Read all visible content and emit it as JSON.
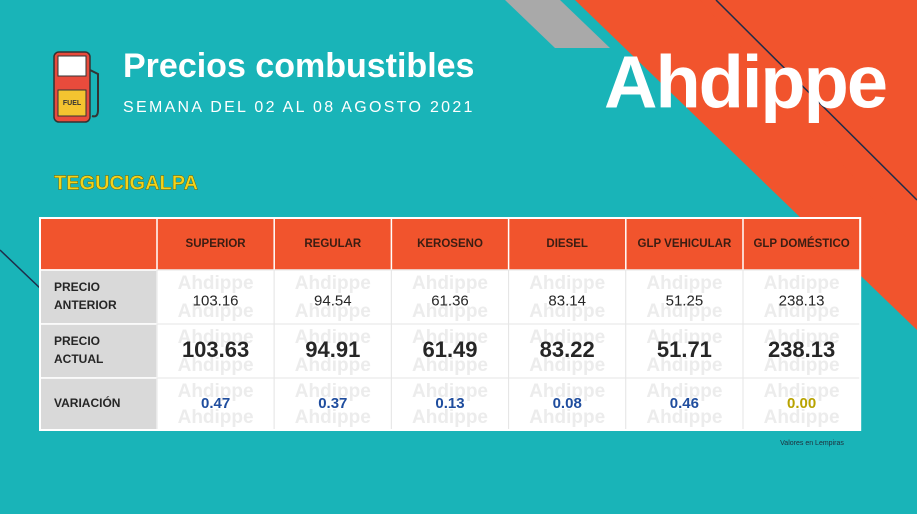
{
  "header": {
    "title": "Precios combustibles",
    "subtitle": "SEMANA DEL 02 AL 08 AGOSTO 2021",
    "icon_label": "FUEL"
  },
  "logo": "Ahdippe",
  "city": "TEGUCIGALPA",
  "table": {
    "columns": [
      "SUPERIOR",
      "REGULAR",
      "KEROSENO",
      "DIESEL",
      "GLP VEHICULAR",
      "GLP DOMÉSTICO"
    ],
    "rows": [
      {
        "label": "PRECIO ANTERIOR",
        "values": [
          "103.16",
          "94.54",
          "61.36",
          "83.14",
          "51.25",
          "238.13"
        ]
      },
      {
        "label": "PRECIO ACTUAL",
        "values": [
          "103.63",
          "94.91",
          "61.49",
          "83.22",
          "51.71",
          "238.13"
        ]
      },
      {
        "label": "VARIACIÓN",
        "values": [
          "0.47",
          "0.37",
          "0.13",
          "0.08",
          "0.46",
          "0.00"
        ]
      }
    ]
  },
  "footnote": "Valores en Lempiras"
}
